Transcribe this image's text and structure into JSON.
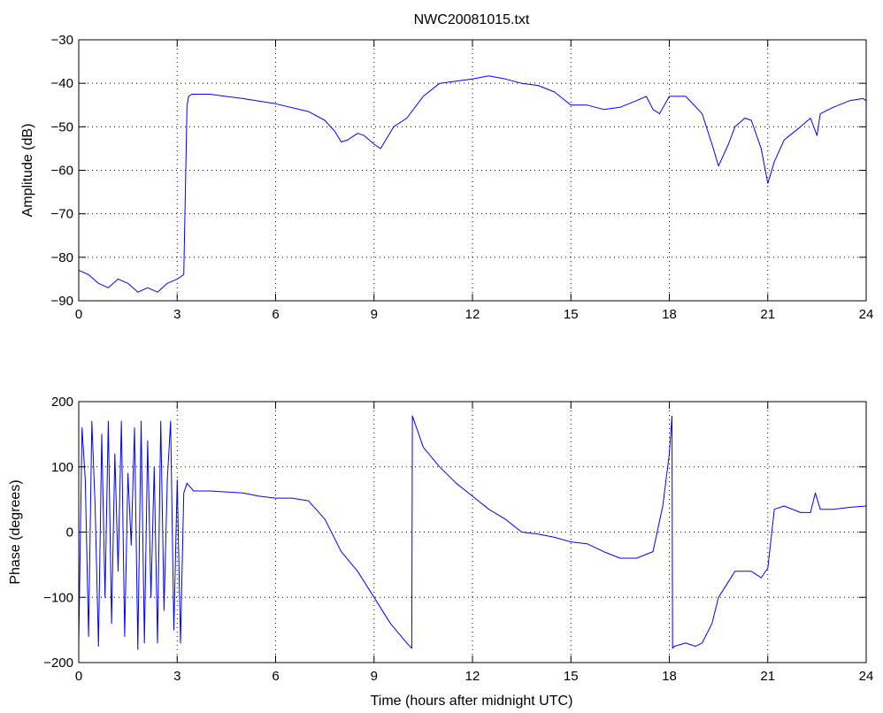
{
  "figure": {
    "title": "NWC20081015.txt",
    "xlabel": "Time (hours after midnight UTC)"
  },
  "chart_data": [
    {
      "type": "line",
      "title": "NWC20081015.txt",
      "xlabel": "",
      "ylabel": "Amplitude (dB)",
      "xlim": [
        0,
        24
      ],
      "ylim": [
        -90,
        -30
      ],
      "xticks": [
        0,
        3,
        6,
        9,
        12,
        15,
        18,
        21,
        24
      ],
      "yticks": [
        -90,
        -80,
        -70,
        -60,
        -50,
        -40,
        -30
      ],
      "grid": true,
      "line_color": "#0000ff",
      "series": [
        {
          "x": [
            0,
            0.3,
            0.6,
            0.9,
            1.2,
            1.5,
            1.8,
            2.1,
            2.4,
            2.7,
            3.0,
            3.2,
            3.3,
            3.35,
            3.45,
            4.0,
            5.0,
            6.0,
            7.0,
            7.5,
            7.8,
            8.0,
            8.2,
            8.5,
            8.7,
            9.0,
            9.2,
            9.4,
            9.6,
            10.0,
            10.5,
            11.0,
            11.5,
            12.0,
            12.5,
            13.0,
            13.5,
            14.0,
            14.5,
            15.0,
            15.5,
            16.0,
            16.5,
            17.0,
            17.3,
            17.5,
            17.7,
            18.0,
            18.5,
            19.0,
            19.3,
            19.5,
            19.8,
            20.0,
            20.3,
            20.5,
            20.8,
            21.0,
            21.2,
            21.5,
            22.0,
            22.3,
            22.5,
            22.6,
            23.0,
            23.5,
            23.9,
            24.0
          ],
          "y": [
            -83,
            -84,
            -86,
            -87,
            -85,
            -86,
            -88,
            -87,
            -88,
            -86,
            -85,
            -84,
            -45,
            -43,
            -42.5,
            -42.5,
            -43.5,
            -44.7,
            -46.5,
            -48.5,
            -51,
            -53.5,
            -53,
            -51.5,
            -52,
            -54,
            -55,
            -52.5,
            -50,
            -48,
            -43,
            -40,
            -39.5,
            -39,
            -38.3,
            -39,
            -40,
            -40.5,
            -42,
            -45,
            -45,
            -46,
            -45.5,
            -44,
            -43,
            -46,
            -47,
            -43,
            -43,
            -47,
            -54,
            -59,
            -54,
            -50,
            -48,
            -48.5,
            -55,
            -63,
            -58,
            -53,
            -50,
            -48,
            -52,
            -47,
            -45.5,
            -44,
            -43.5,
            -44
          ]
        }
      ]
    },
    {
      "type": "line",
      "title": "",
      "xlabel": "Time (hours after midnight UTC)",
      "ylabel": "Phase (degrees)",
      "xlim": [
        0,
        24
      ],
      "ylim": [
        -200,
        200
      ],
      "xticks": [
        0,
        3,
        6,
        9,
        12,
        15,
        18,
        21,
        24
      ],
      "yticks": [
        -200,
        -100,
        0,
        100,
        200
      ],
      "grid": true,
      "line_color": "#0000ff",
      "series": [
        {
          "x": [
            0,
            0.1,
            0.2,
            0.3,
            0.4,
            0.5,
            0.6,
            0.7,
            0.8,
            0.9,
            1.0,
            1.1,
            1.2,
            1.3,
            1.4,
            1.5,
            1.6,
            1.7,
            1.8,
            1.9,
            2.0,
            2.1,
            2.2,
            2.3,
            2.4,
            2.5,
            2.6,
            2.7,
            2.8,
            2.9,
            3.0,
            3.1,
            3.2,
            3.3,
            3.5,
            4.0,
            5.0,
            5.5,
            6.0,
            6.5,
            7.0,
            7.5,
            8.0,
            8.5,
            9.0,
            9.5,
            10.0,
            10.15,
            10.17,
            10.5,
            11.0,
            11.5,
            12.0,
            12.5,
            13.0,
            13.5,
            14.0,
            14.5,
            15.0,
            15.5,
            16.0,
            16.5,
            17.0,
            17.5,
            17.8,
            18.0,
            18.08,
            18.1,
            18.15,
            18.5,
            18.8,
            19.0,
            19.3,
            19.5,
            20.0,
            20.5,
            20.8,
            21.0,
            21.2,
            21.5,
            22.0,
            22.3,
            22.45,
            22.6,
            23.0,
            23.5,
            24.0
          ],
          "y": [
            -170,
            160,
            80,
            -160,
            170,
            40,
            -175,
            150,
            -100,
            170,
            -140,
            120,
            -60,
            170,
            -160,
            90,
            -20,
            160,
            -180,
            170,
            -170,
            140,
            -100,
            100,
            -170,
            170,
            -120,
            80,
            170,
            -150,
            80,
            -170,
            60,
            75,
            63,
            63,
            60,
            55,
            52,
            52,
            48,
            20,
            -30,
            -60,
            -100,
            -140,
            -170,
            -178,
            178,
            130,
            100,
            75,
            55,
            35,
            20,
            0,
            -3,
            -8,
            -15,
            -18,
            -30,
            -40,
            -40,
            -30,
            40,
            120,
            178,
            -178,
            -175,
            -170,
            -175,
            -170,
            -140,
            -100,
            -60,
            -60,
            -70,
            -55,
            35,
            40,
            30,
            30,
            60,
            35,
            35,
            38,
            40
          ]
        }
      ]
    }
  ]
}
